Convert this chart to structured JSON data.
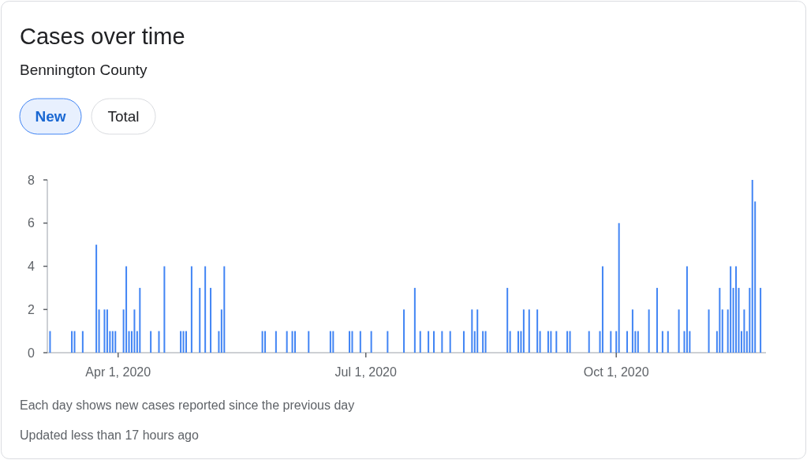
{
  "chart_data": {
    "type": "bar",
    "title": "Cases over time",
    "subtitle": "Bennington County",
    "x": [
      "2020-03-07",
      "2020-03-15",
      "2020-03-16",
      "2020-03-19",
      "2020-03-24",
      "2020-03-25",
      "2020-03-27",
      "2020-03-28",
      "2020-03-29",
      "2020-03-30",
      "2020-03-31",
      "2020-04-03",
      "2020-04-04",
      "2020-04-05",
      "2020-04-06",
      "2020-04-07",
      "2020-04-08",
      "2020-04-09",
      "2020-04-13",
      "2020-04-16",
      "2020-04-18",
      "2020-04-24",
      "2020-04-25",
      "2020-04-26",
      "2020-04-28",
      "2020-05-01",
      "2020-05-03",
      "2020-05-05",
      "2020-05-08",
      "2020-05-09",
      "2020-05-10",
      "2020-05-24",
      "2020-05-25",
      "2020-05-29",
      "2020-06-02",
      "2020-06-04",
      "2020-06-05",
      "2020-06-10",
      "2020-06-18",
      "2020-06-19",
      "2020-06-25",
      "2020-06-26",
      "2020-06-29",
      "2020-07-03",
      "2020-07-09",
      "2020-07-15",
      "2020-07-19",
      "2020-07-21",
      "2020-07-24",
      "2020-07-26",
      "2020-07-29",
      "2020-08-01",
      "2020-08-06",
      "2020-08-09",
      "2020-08-10",
      "2020-08-11",
      "2020-08-13",
      "2020-08-14",
      "2020-08-22",
      "2020-08-23",
      "2020-08-26",
      "2020-08-27",
      "2020-08-28",
      "2020-08-30",
      "2020-09-02",
      "2020-09-03",
      "2020-09-06",
      "2020-09-07",
      "2020-09-09",
      "2020-09-13",
      "2020-09-14",
      "2020-09-21",
      "2020-09-25",
      "2020-09-26",
      "2020-09-29",
      "2020-10-01",
      "2020-10-02",
      "2020-10-05",
      "2020-10-07",
      "2020-10-08",
      "2020-10-09",
      "2020-10-13",
      "2020-10-16",
      "2020-10-18",
      "2020-10-20",
      "2020-10-24",
      "2020-10-26",
      "2020-10-27",
      "2020-10-28",
      "2020-11-04",
      "2020-11-07",
      "2020-11-08",
      "2020-11-09",
      "2020-11-11",
      "2020-11-12",
      "2020-11-13",
      "2020-11-14",
      "2020-11-15",
      "2020-11-16",
      "2020-11-17",
      "2020-11-18",
      "2020-11-19",
      "2020-11-20",
      "2020-11-21",
      "2020-11-23"
    ],
    "values": [
      1,
      1,
      1,
      1,
      5,
      2,
      2,
      2,
      1,
      1,
      1,
      2,
      4,
      1,
      1,
      2,
      1,
      3,
      1,
      1,
      4,
      1,
      1,
      1,
      4,
      3,
      4,
      3,
      1,
      2,
      4,
      1,
      1,
      1,
      1,
      1,
      1,
      1,
      1,
      1,
      1,
      1,
      1,
      1,
      1,
      2,
      3,
      1,
      1,
      1,
      1,
      1,
      1,
      2,
      1,
      2,
      1,
      1,
      3,
      1,
      1,
      1,
      2,
      2,
      2,
      1,
      1,
      1,
      1,
      1,
      1,
      1,
      1,
      4,
      1,
      1,
      6,
      1,
      2,
      1,
      1,
      2,
      3,
      1,
      1,
      2,
      1,
      4,
      1,
      2,
      1,
      3,
      2,
      2,
      4,
      3,
      4,
      3,
      1,
      2,
      1,
      3,
      8,
      7,
      3
    ],
    "color": "#4285f4",
    "xlim": [
      "2020-03-06",
      "2020-11-25"
    ],
    "xticks": [
      {
        "value": "2020-04-01",
        "label": "Apr 1, 2020"
      },
      {
        "value": "2020-07-01",
        "label": "Jul 1, 2020"
      },
      {
        "value": "2020-10-01",
        "label": "Oct 1, 2020"
      }
    ],
    "ylim": [
      0,
      8
    ],
    "yticks": [
      0,
      2,
      4,
      6,
      8
    ],
    "annotations": [
      "New",
      "Total",
      "Each day shows new cases reported since the previous day",
      "Updated less than 17 hours ago"
    ]
  }
}
